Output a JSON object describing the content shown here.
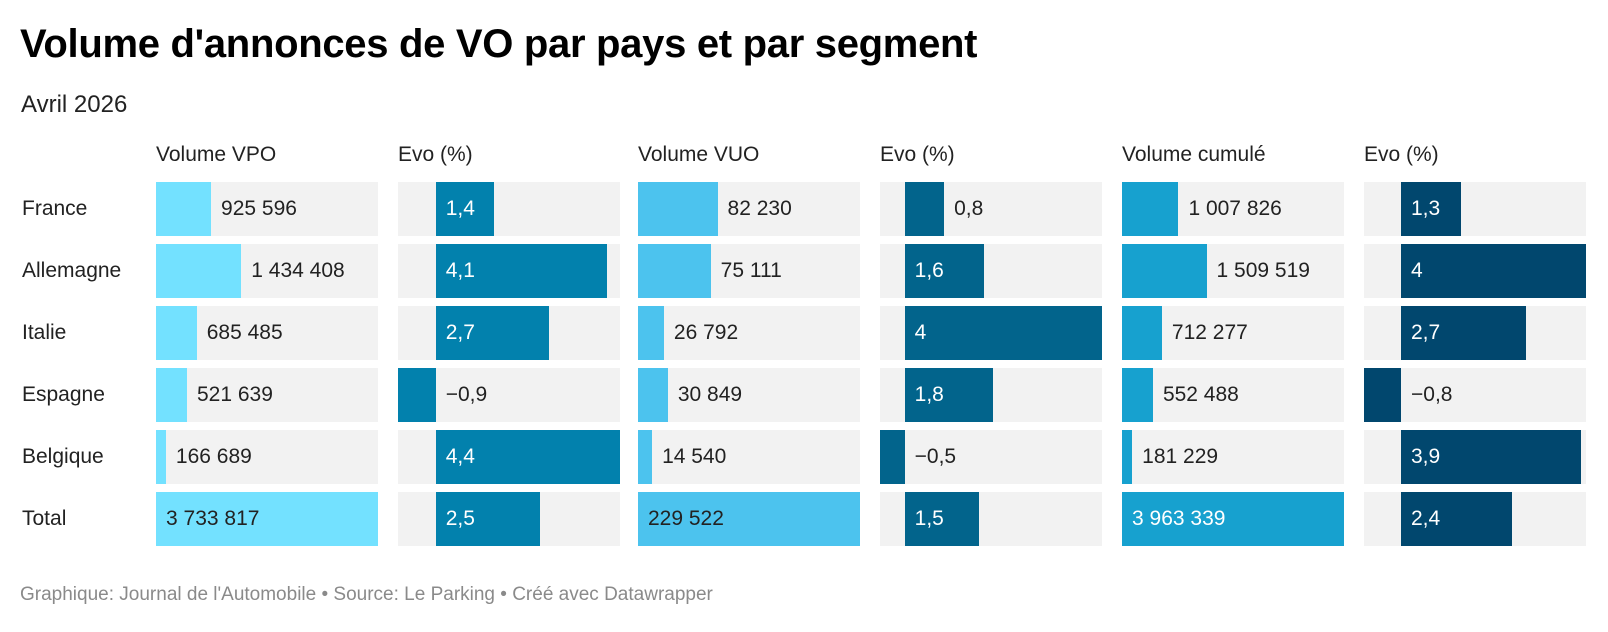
{
  "title": "Volume d'annonces de VO par pays et par segment",
  "subtitle": "Avril 2026",
  "footer": "Graphique: Journal de l'Automobile • Source: Le Parking • Créé avec Datawrapper",
  "chart_data": {
    "type": "table",
    "title": "Volume d'annonces de VO par pays et par segment",
    "subtitle": "Avril 2026",
    "rows": [
      "France",
      "Allemagne",
      "Italie",
      "Espagne",
      "Belgique",
      "Total"
    ],
    "columns": [
      {
        "name": "Volume VPO",
        "kind": "volume",
        "color": "#73e1ff",
        "values": [
          925596,
          1434408,
          685485,
          521639,
          166689,
          3733817
        ],
        "labels": [
          "925 596",
          "1 434 408",
          "685 485",
          "521 639",
          "166 689",
          "3 733 817"
        ]
      },
      {
        "name": "Evo (%)",
        "kind": "evo",
        "color": "#0281ad",
        "values": [
          1.4,
          4.1,
          2.7,
          -0.9,
          4.4,
          2.5
        ],
        "labels": [
          "1,4",
          "4,1",
          "2,7",
          "−0,9",
          "4,4",
          "2,5"
        ]
      },
      {
        "name": "Volume VUO",
        "kind": "volume",
        "color": "#4cc3ee",
        "values": [
          82230,
          75111,
          26792,
          30849,
          14540,
          229522
        ],
        "labels": [
          "82 230",
          "75 111",
          "26 792",
          "30 849",
          "14 540",
          "229 522"
        ]
      },
      {
        "name": "Evo (%)",
        "kind": "evo",
        "color": "#02648c",
        "values": [
          0.8,
          1.6,
          4,
          1.8,
          -0.5,
          1.5
        ],
        "labels": [
          "0,8",
          "1,6",
          "4",
          "1,8",
          "−0,5",
          "1,5"
        ]
      },
      {
        "name": "Volume cumulé",
        "kind": "volume",
        "color": "#17a1cf",
        "values": [
          1007826,
          1509519,
          712277,
          552488,
          181229,
          3963339
        ],
        "labels": [
          "1 007 826",
          "1 509 519",
          "712 277",
          "552 488",
          "181 229",
          "3 963 339"
        ]
      },
      {
        "name": "Evo (%)",
        "kind": "evo",
        "color": "#01476e",
        "values": [
          1.3,
          4,
          2.7,
          -0.8,
          3.9,
          2.4
        ],
        "labels": [
          "1,3",
          "4",
          "2,7",
          "−0,8",
          "3,9",
          "2,4"
        ]
      }
    ]
  }
}
